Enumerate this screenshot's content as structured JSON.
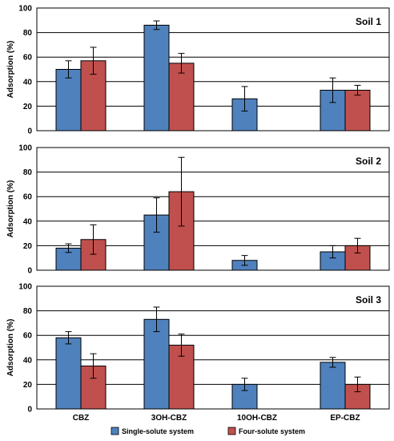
{
  "chart_data": {
    "type": "bar",
    "categories": [
      "CBZ",
      "3OH-CBZ",
      "10OH-CBZ",
      "EP-CBZ"
    ],
    "ylabel": "Adsorption (%)",
    "ylim": [
      0,
      100
    ],
    "yticks": [
      0,
      20,
      40,
      60,
      80,
      100
    ],
    "grid": true,
    "legend": {
      "placement": "bottom",
      "entries": [
        "Single-solute system",
        "Four-solute system"
      ]
    },
    "colors": {
      "single": "#4F81BD",
      "four": "#C0504D",
      "border": "#000000"
    },
    "panels": [
      {
        "title": "Soil 1",
        "series": [
          {
            "name": "Single-solute system",
            "values": [
              50,
              86,
              26,
              33
            ],
            "errors": [
              7,
              3.5,
              10,
              10
            ]
          },
          {
            "name": "Four-solute system",
            "values": [
              57,
              55,
              null,
              33
            ],
            "errors": [
              11,
              8,
              null,
              4
            ]
          }
        ]
      },
      {
        "title": "Soil 2",
        "series": [
          {
            "name": "Single-solute system",
            "values": [
              18,
              45,
              8,
              15
            ],
            "errors": [
              3.5,
              14,
              4,
              5
            ]
          },
          {
            "name": "Four-solute system",
            "values": [
              25,
              64,
              null,
              20
            ],
            "errors": [
              12,
              28,
              null,
              6
            ]
          }
        ]
      },
      {
        "title": "Soil 3",
        "series": [
          {
            "name": "Single-solute system",
            "values": [
              58,
              73,
              20,
              38
            ],
            "errors": [
              5,
              10,
              5,
              4
            ]
          },
          {
            "name": "Four-solute system",
            "values": [
              35,
              52,
              null,
              20
            ],
            "errors": [
              10,
              9,
              null,
              6
            ]
          }
        ]
      }
    ]
  }
}
